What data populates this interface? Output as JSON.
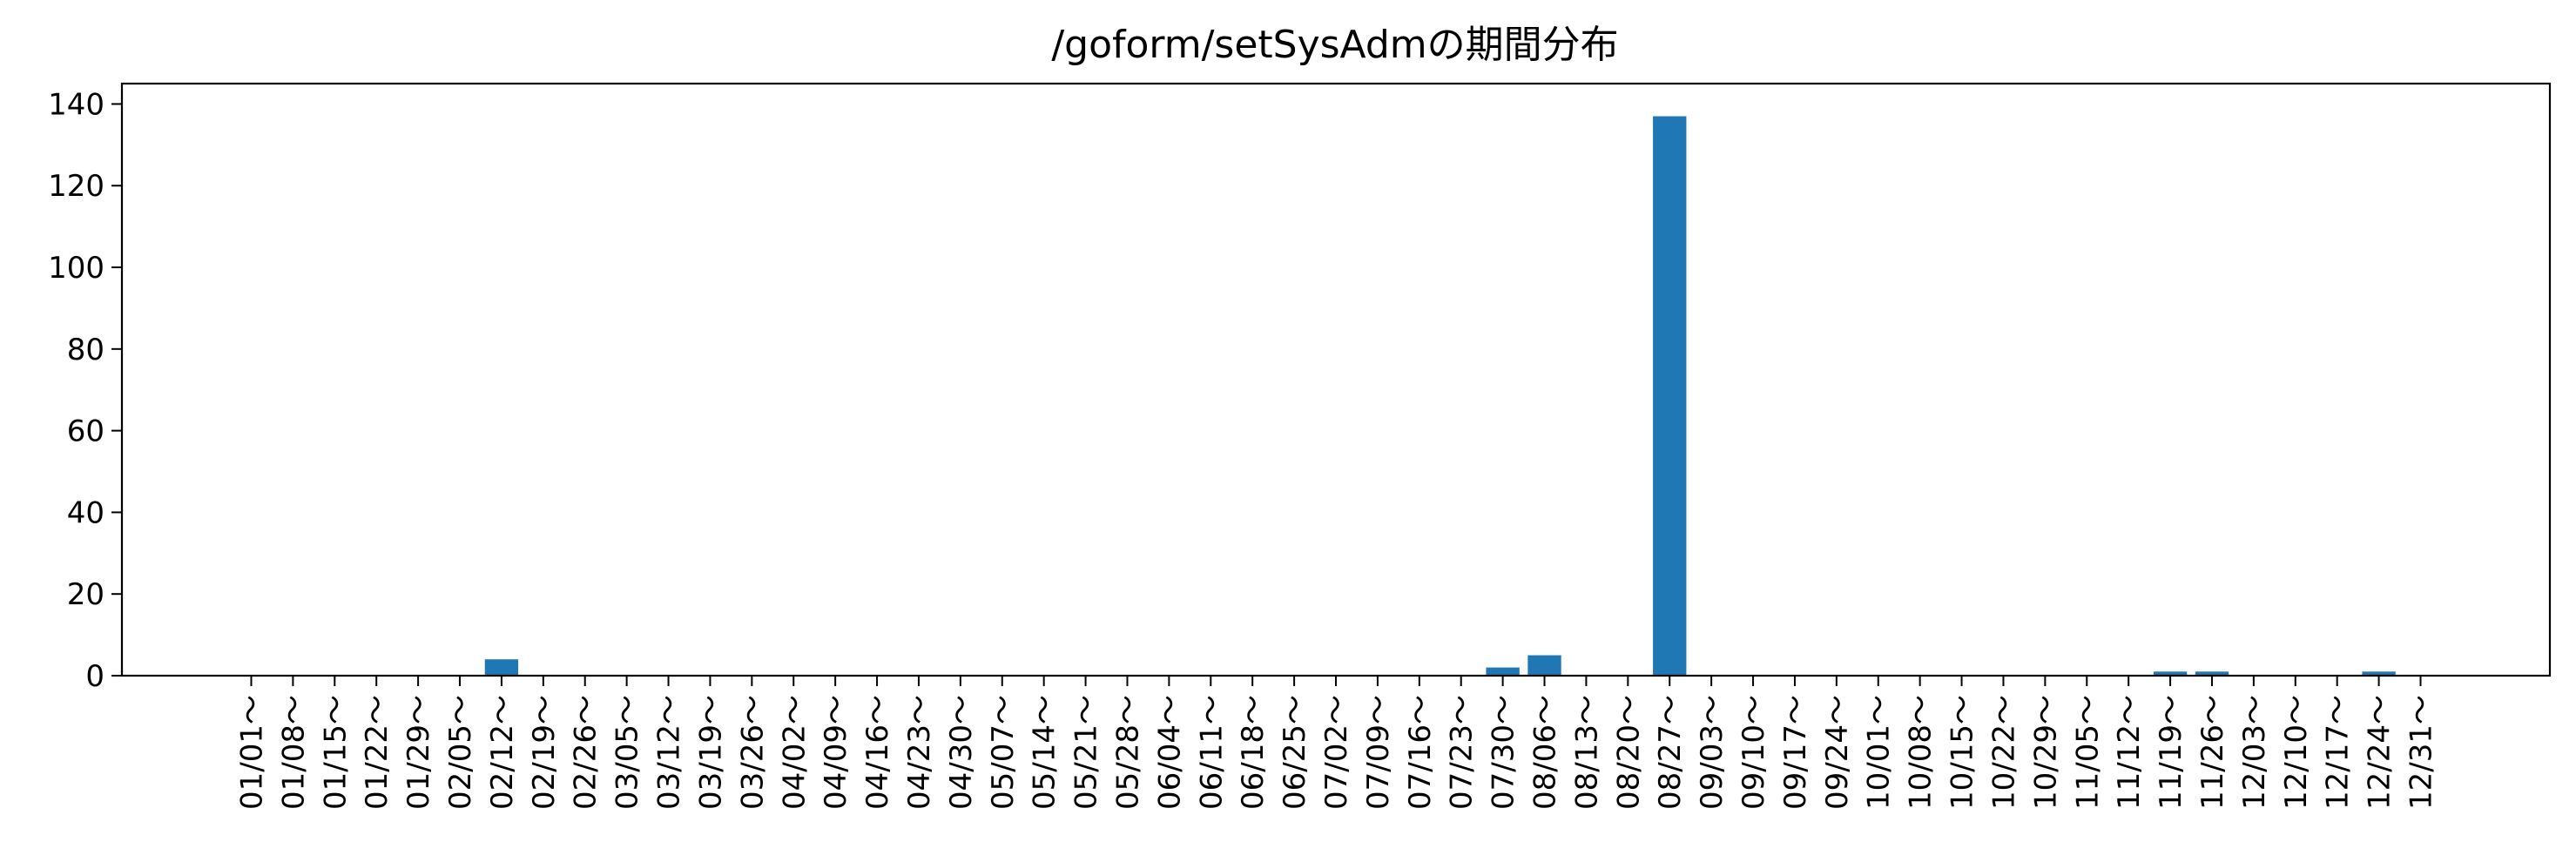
{
  "chart_data": {
    "type": "bar",
    "title": "/goform/setSysAdmの期間分布",
    "xlabel": "",
    "ylabel": "",
    "ylim": [
      0,
      145
    ],
    "yticks": [
      0,
      20,
      40,
      60,
      80,
      100,
      120,
      140
    ],
    "grid": false,
    "bar_color": "#1f77b4",
    "categories": [
      "01/01～",
      "01/08～",
      "01/15～",
      "01/22～",
      "01/29～",
      "02/05～",
      "02/12～",
      "02/19～",
      "02/26～",
      "03/05～",
      "03/12～",
      "03/19～",
      "03/26～",
      "04/02～",
      "04/09～",
      "04/16～",
      "04/23～",
      "04/30～",
      "05/07～",
      "05/14～",
      "05/21～",
      "05/28～",
      "06/04～",
      "06/11～",
      "06/18～",
      "06/25～",
      "07/02～",
      "07/09～",
      "07/16～",
      "07/23～",
      "07/30～",
      "08/06～",
      "08/13～",
      "08/20～",
      "08/27～",
      "09/03～",
      "09/10～",
      "09/17～",
      "09/24～",
      "10/01～",
      "10/08～",
      "10/15～",
      "10/22～",
      "10/29～",
      "11/05～",
      "11/12～",
      "11/19～",
      "11/26～",
      "12/03～",
      "12/10～",
      "12/17～",
      "12/24～",
      "12/31～"
    ],
    "values": [
      0,
      0,
      0,
      0,
      0,
      0,
      4,
      0,
      0,
      0,
      0,
      0,
      0,
      0,
      0,
      0,
      0,
      0,
      0,
      0,
      0,
      0,
      0,
      0,
      0,
      0,
      0,
      0,
      0,
      0,
      2,
      5,
      0,
      0,
      137,
      0,
      0,
      0,
      0,
      0,
      0,
      0,
      0,
      0,
      0,
      0,
      1,
      1,
      0,
      0,
      0,
      1,
      0
    ]
  }
}
